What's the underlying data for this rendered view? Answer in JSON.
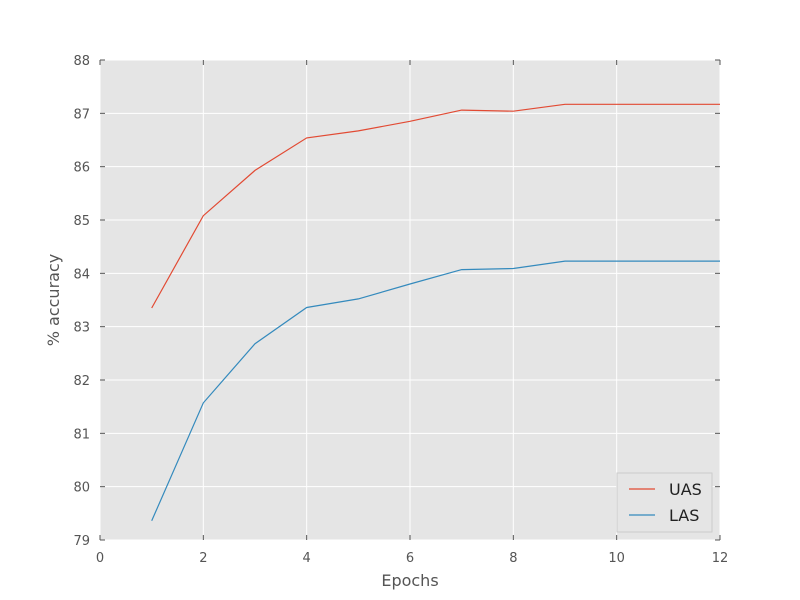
{
  "chart_data": {
    "type": "line",
    "title": "",
    "xlabel": "Epochs",
    "ylabel": "% accuracy",
    "xlim": [
      0,
      12
    ],
    "ylim": [
      79,
      88
    ],
    "xticks": [
      "0",
      "2",
      "4",
      "6",
      "8",
      "10",
      "12"
    ],
    "yticks": [
      "79",
      "80",
      "81",
      "82",
      "83",
      "84",
      "85",
      "86",
      "87",
      "88"
    ],
    "grid": true,
    "legend_position": "lower-right",
    "x": [
      1,
      2,
      3,
      4,
      5,
      6,
      7,
      8,
      9,
      10,
      11,
      12
    ],
    "series": [
      {
        "name": "UAS",
        "color": "#e24a33",
        "values": [
          83.35,
          85.08,
          85.93,
          86.54,
          86.67,
          86.85,
          87.06,
          87.04,
          87.17,
          87.17,
          87.17,
          87.17
        ]
      },
      {
        "name": "LAS",
        "color": "#348abd",
        "values": [
          79.36,
          81.57,
          82.68,
          83.36,
          83.52,
          83.8,
          84.07,
          84.09,
          84.23,
          84.23,
          84.23,
          84.23
        ]
      }
    ]
  }
}
